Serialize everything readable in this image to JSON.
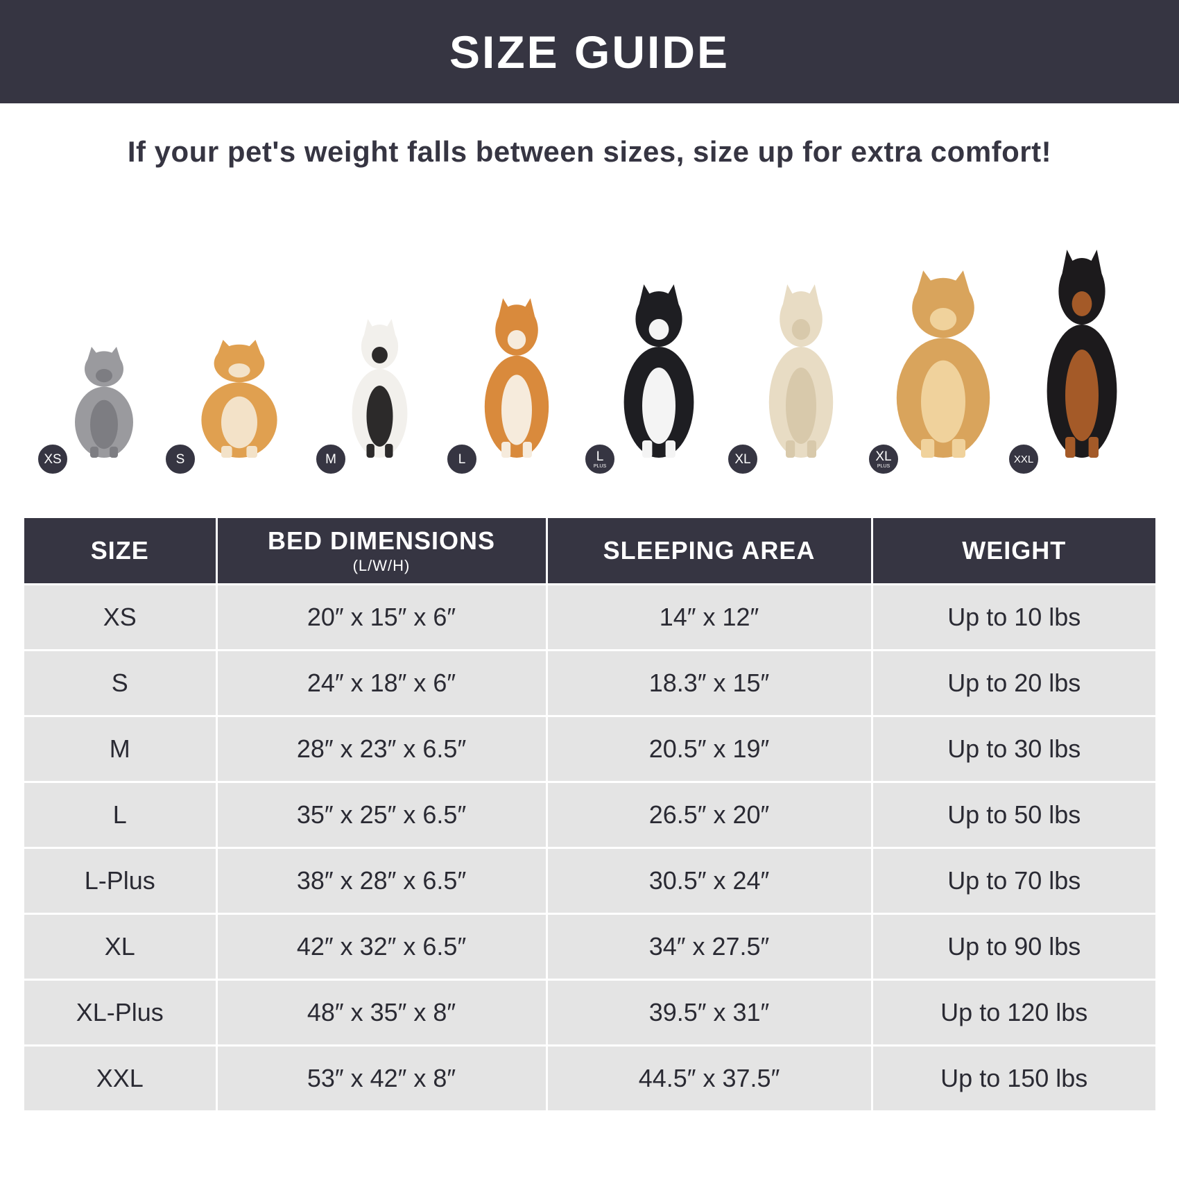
{
  "header": {
    "title": "SIZE GUIDE"
  },
  "subtitle": "If your pet's weight falls between sizes, size up for extra comfort!",
  "pets": [
    {
      "badge": "XS",
      "badge_sub": "",
      "animal": "cat"
    },
    {
      "badge": "S",
      "badge_sub": "",
      "animal": "pomeranian"
    },
    {
      "badge": "M",
      "badge_sub": "",
      "animal": "french-bulldog"
    },
    {
      "badge": "L",
      "badge_sub": "",
      "animal": "shiba-inu"
    },
    {
      "badge": "L",
      "badge_sub": "PLUS",
      "animal": "border-collie"
    },
    {
      "badge": "XL",
      "badge_sub": "",
      "animal": "labrador"
    },
    {
      "badge": "XL",
      "badge_sub": "PLUS",
      "animal": "golden-retriever"
    },
    {
      "badge": "XXL",
      "badge_sub": "",
      "animal": "doberman"
    }
  ],
  "table": {
    "headers": {
      "size": "SIZE",
      "bed": "BED DIMENSIONS",
      "bed_unit": "(L/W/H)",
      "sleeping": "SLEEPING AREA",
      "weight": "WEIGHT"
    },
    "rows": [
      {
        "size": "XS",
        "bed": "20″ x 15″ x 6″",
        "sleeping": "14″ x 12″",
        "weight": "Up to 10 lbs"
      },
      {
        "size": "S",
        "bed": "24″ x 18″ x 6″",
        "sleeping": "18.3″ x 15″",
        "weight": "Up to 20 lbs"
      },
      {
        "size": "M",
        "bed": "28″ x 23″ x 6.5″",
        "sleeping": "20.5″ x 19″",
        "weight": "Up to 30 lbs"
      },
      {
        "size": "L",
        "bed": "35″ x 25″ x 6.5″",
        "sleeping": "26.5″ x 20″",
        "weight": "Up to 50 lbs"
      },
      {
        "size": "L-Plus",
        "bed": "38″ x 28″ x 6.5″",
        "sleeping": "30.5″ x 24″",
        "weight": "Up to 70 lbs"
      },
      {
        "size": "XL",
        "bed": "42″ x 32″ x 6.5″",
        "sleeping": "34″ x 27.5″",
        "weight": "Up to 90 lbs"
      },
      {
        "size": "XL-Plus",
        "bed": "48″ x 35″ x 8″",
        "sleeping": "39.5″ x 31″",
        "weight": "Up to 120 lbs"
      },
      {
        "size": "XXL",
        "bed": "53″ x 42″ x 8″",
        "sleeping": "44.5″ x 37.5″",
        "weight": "Up to 150 lbs"
      }
    ]
  }
}
